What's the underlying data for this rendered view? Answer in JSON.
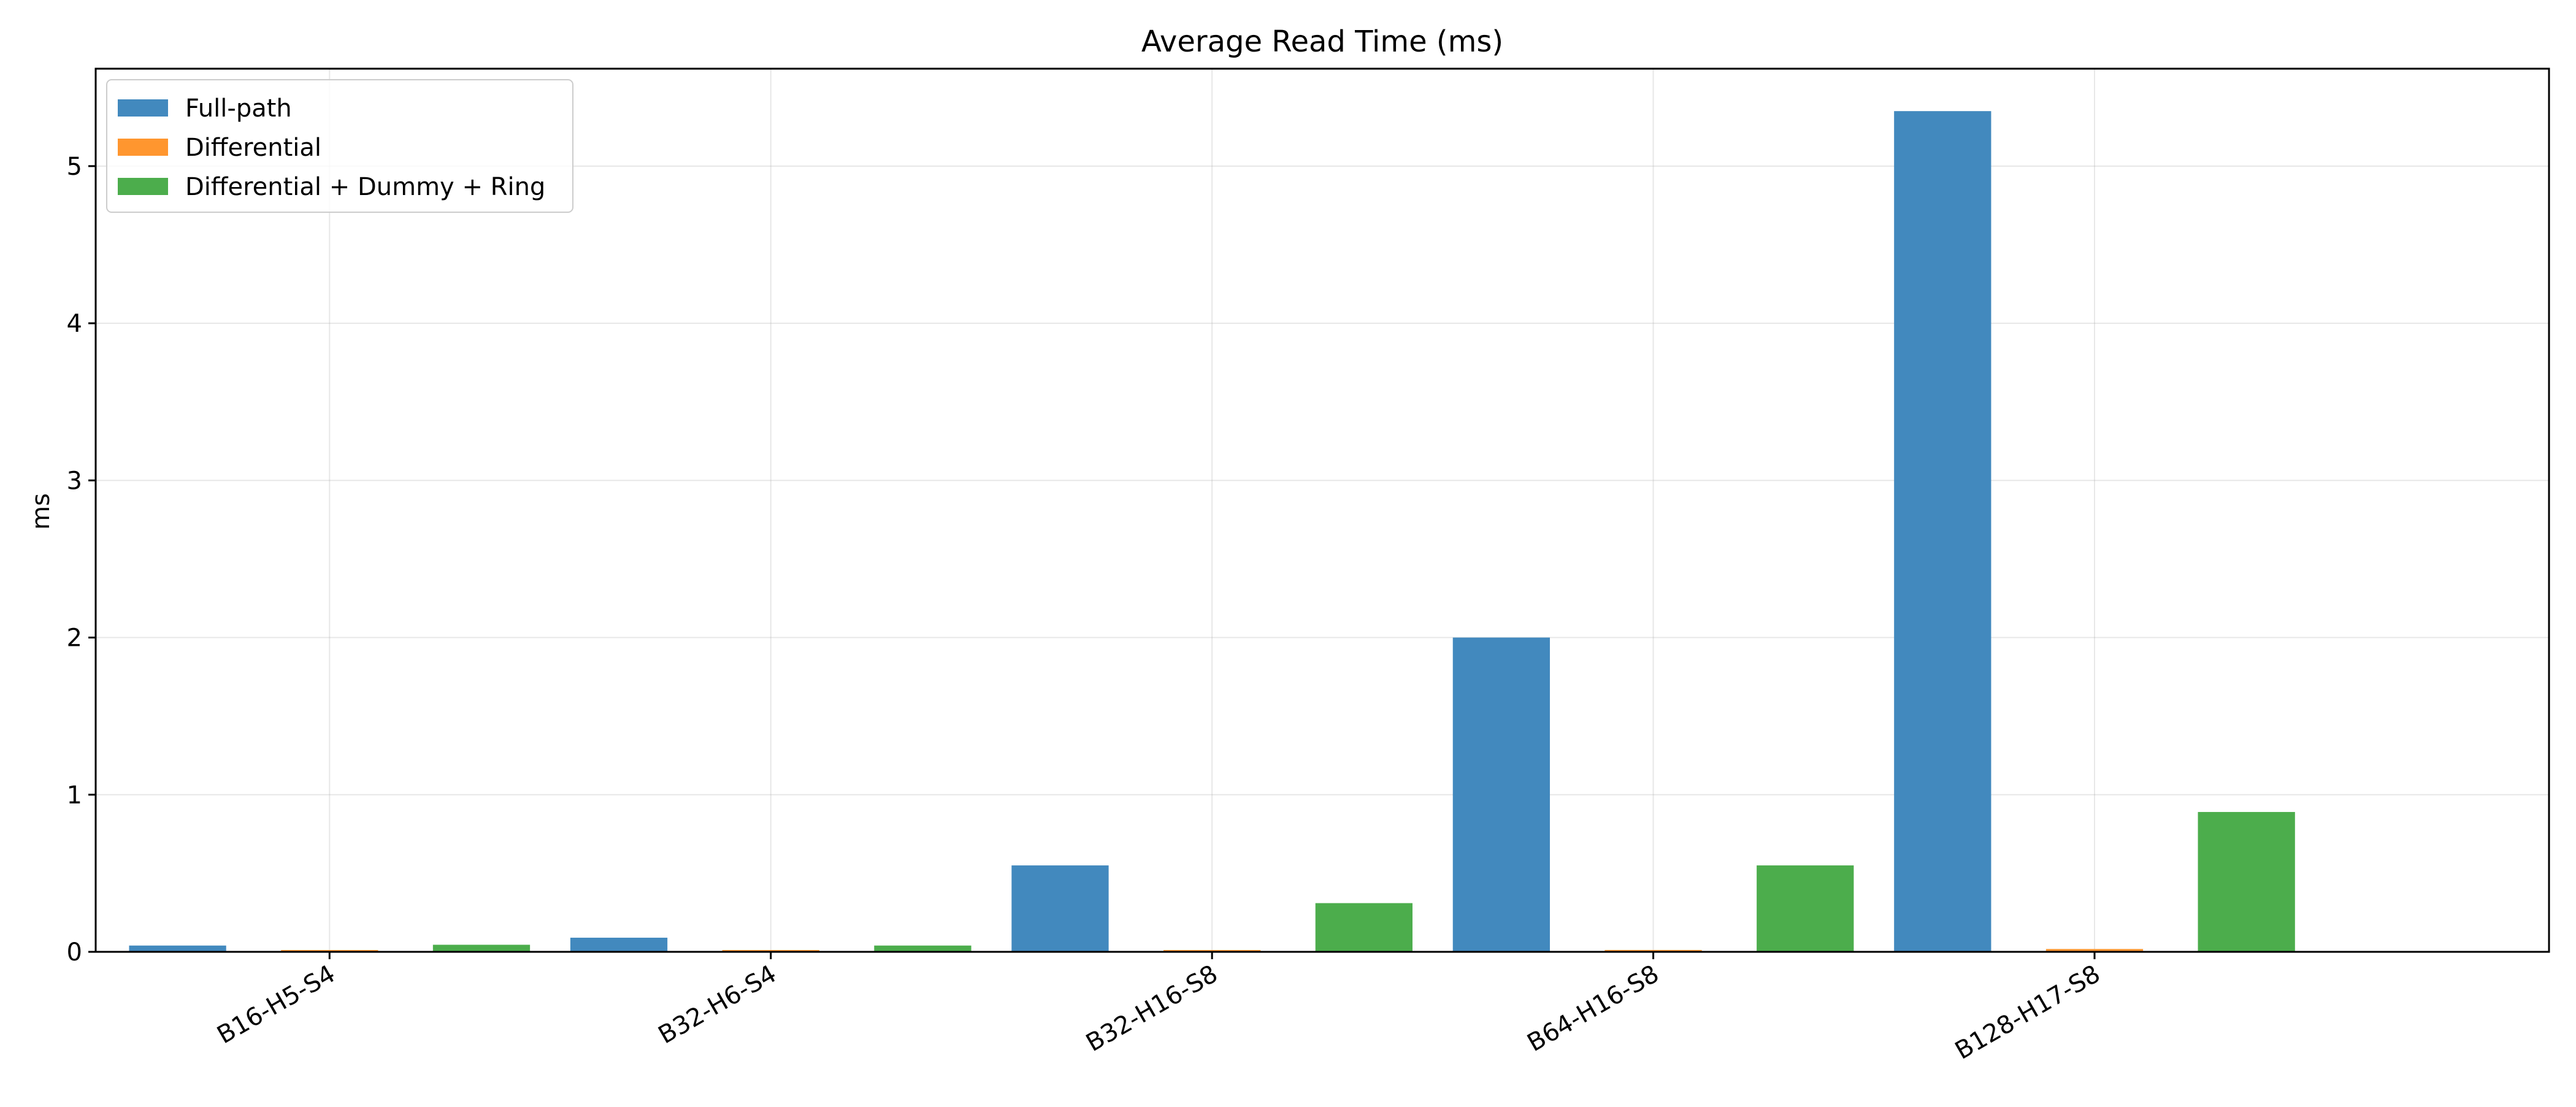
{
  "chart_data": {
    "type": "bar",
    "title": "Average Read Time (ms)",
    "xlabel": "",
    "ylabel": "ms",
    "categories": [
      "B16-H5-S4",
      "B32-H6-S4",
      "B32-H16-S8",
      "B64-H16-S8",
      "B128-H17-S8"
    ],
    "series": [
      {
        "name": "Full-path",
        "color": "#4289be",
        "values": [
          0.04,
          0.09,
          0.55,
          2.0,
          5.35
        ]
      },
      {
        "name": "Differential",
        "color": "#ff962f",
        "values": [
          0.005,
          0.006,
          0.01,
          0.012,
          0.018
        ]
      },
      {
        "name": "Differential + Dummy + Ring",
        "color": "#4cad4c",
        "values": [
          0.045,
          0.04,
          0.31,
          0.55,
          0.89
        ]
      }
    ],
    "yticks": [
      0,
      1,
      2,
      3,
      4,
      5
    ],
    "ylim": [
      0,
      5.62
    ],
    "grid": true,
    "legend_position": "top-left"
  }
}
